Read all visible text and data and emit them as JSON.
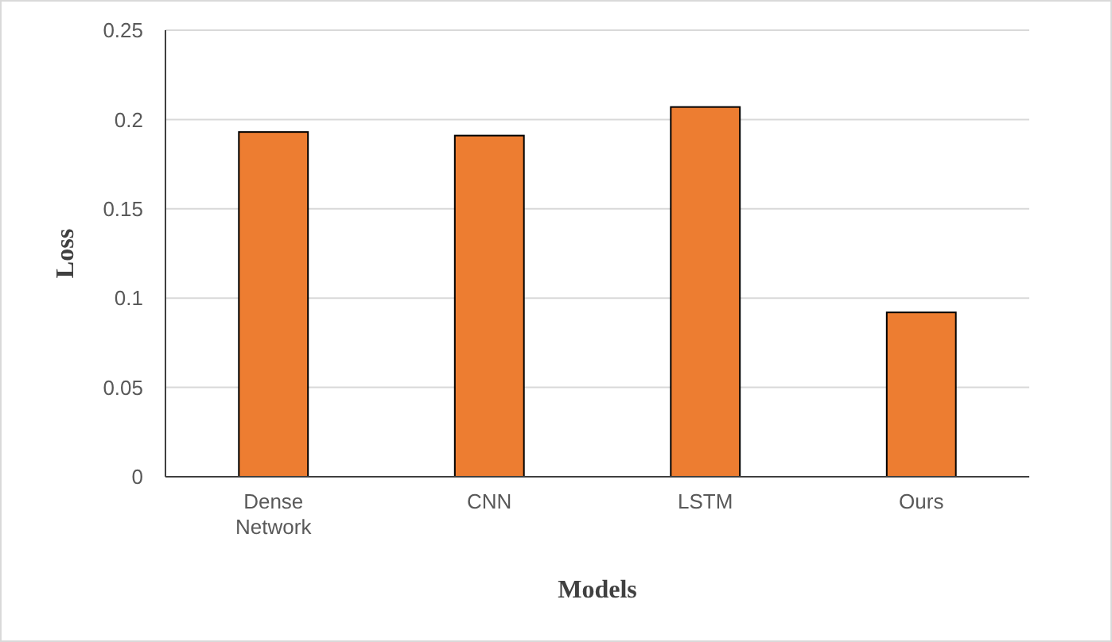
{
  "chart_data": {
    "type": "bar",
    "xlabel": "Models",
    "ylabel": "Loss",
    "categories": [
      "Dense Network",
      "CNN",
      "LSTM",
      "Ours"
    ],
    "values": [
      0.193,
      0.191,
      0.207,
      0.092
    ],
    "color": "#ed7d31",
    "ylim": [
      0,
      0.25
    ],
    "yticks": [
      0,
      0.05,
      0.1,
      0.15,
      0.2,
      0.25
    ],
    "grid": "y"
  }
}
